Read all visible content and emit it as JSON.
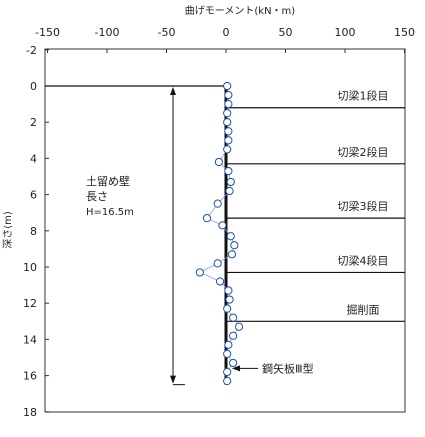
{
  "chart_data": {
    "type": "scatter",
    "title": "",
    "xlabel": "曲げモーメント(kN・m)",
    "ylabel": "深さ(m)",
    "xlim": [
      -150,
      150
    ],
    "ylim": [
      -2,
      18
    ],
    "x_ticks": [
      -150,
      -100,
      -50,
      0,
      50,
      100,
      150
    ],
    "y_ticks": [
      -2,
      0,
      2,
      4,
      6,
      8,
      10,
      12,
      14,
      16,
      18
    ],
    "x_tick_labels": [
      "-150",
      "-100",
      "-50",
      "0",
      "50",
      "100",
      "150"
    ],
    "y_tick_labels": [
      "-2",
      "0",
      "2",
      "4",
      "6",
      "8",
      "10",
      "12",
      "14",
      "16",
      "18"
    ],
    "grid": false,
    "series": [
      {
        "points": [
          {
            "x": 1,
            "y": 0.0
          },
          {
            "x": 2,
            "y": 0.5
          },
          {
            "x": 2,
            "y": 1.0
          },
          {
            "x": 1,
            "y": 1.5
          },
          {
            "x": 1,
            "y": 2.0
          },
          {
            "x": 2,
            "y": 2.5
          },
          {
            "x": 2,
            "y": 3.0
          },
          {
            "x": 1,
            "y": 3.5
          },
          {
            "x": -6,
            "y": 4.2
          },
          {
            "x": 2,
            "y": 4.7
          },
          {
            "x": 4,
            "y": 5.3
          },
          {
            "x": 3,
            "y": 5.8
          },
          {
            "x": -7,
            "y": 6.5
          },
          {
            "x": -16,
            "y": 7.3
          },
          {
            "x": -3,
            "y": 7.7
          },
          {
            "x": 4,
            "y": 8.3
          },
          {
            "x": 7,
            "y": 8.8
          },
          {
            "x": 5,
            "y": 9.3
          },
          {
            "x": -7,
            "y": 9.8
          },
          {
            "x": -22,
            "y": 10.3
          },
          {
            "x": -5,
            "y": 10.8
          },
          {
            "x": 2,
            "y": 11.3
          },
          {
            "x": 3,
            "y": 11.8
          },
          {
            "x": 1,
            "y": 12.3
          },
          {
            "x": 6,
            "y": 12.8
          },
          {
            "x": 11,
            "y": 13.3
          },
          {
            "x": 6,
            "y": 13.8
          },
          {
            "x": 2,
            "y": 14.3
          },
          {
            "x": 1,
            "y": 14.8
          },
          {
            "x": 6,
            "y": 15.3
          },
          {
            "x": 1,
            "y": 15.8
          },
          {
            "x": 1,
            "y": 16.3
          }
        ]
      }
    ],
    "ground_line_depth": 0,
    "wall": {
      "top": 0,
      "bottom": 16.5
    },
    "struts": [
      {
        "label": "切梁1段目",
        "depth": 1.2
      },
      {
        "label": "切梁2段目",
        "depth": 4.3
      },
      {
        "label": "切梁3段目",
        "depth": 7.3
      },
      {
        "label": "切梁4段目",
        "depth": 10.3
      },
      {
        "label": "掘削面",
        "depth": 13.0
      }
    ],
    "wall_label": {
      "line1": "土留め壁",
      "line2": "長さ",
      "line3": "H=16.5m"
    },
    "pile_label": "鋼矢板Ⅲ型",
    "pile_label_depth": 15.6
  },
  "colors": {
    "marker": "#1f4fa8",
    "line": "#111111",
    "frame": "#333333"
  }
}
